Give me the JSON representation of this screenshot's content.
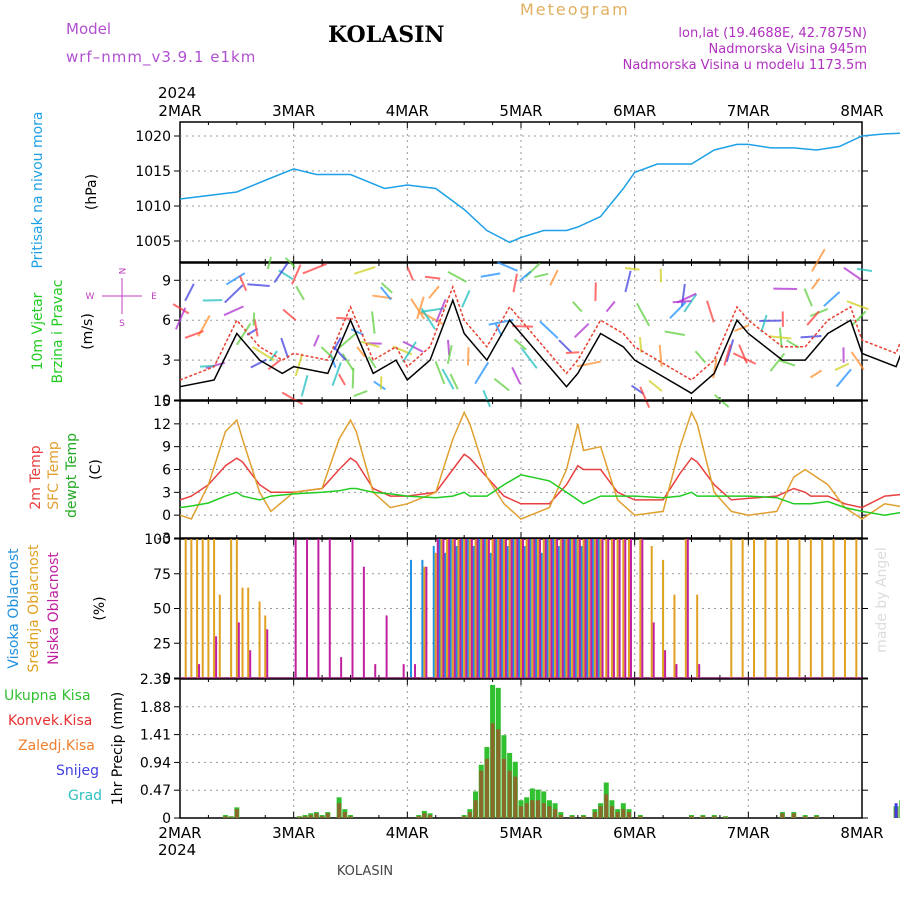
{
  "header": {
    "model_label": "Model",
    "model_name": "wrf–nmm_v3.9.1  e1km",
    "station": "KOLASIN",
    "product": "Meteogram",
    "lonlat": "lon,lat (19.4688E, 42.7875N)",
    "elevation": "Nadmorska Visina 945m",
    "model_elevation": "Nadmorska Visina u modelu 1173.5m",
    "year": "2024",
    "footer_station": "KOLASIN",
    "credit": "made by Angel"
  },
  "colors": {
    "pressure": "#1ea0e6",
    "wind_speed": "#000000",
    "wind_gust": "#e84030",
    "temp2m": "#e84040",
    "sfc_temp": "#e0a030",
    "dewpoint": "#22cc22",
    "cloud_high": "#1e90e0",
    "cloud_mid": "#e0a020",
    "cloud_low": "#c020a0",
    "precip_total": "#30c030",
    "precip_conv": "#e83030",
    "precip_frozen": "#f08030",
    "precip_snow": "#4040e0",
    "precip_grad": "#30c0c0"
  },
  "x_ticks": [
    "2MAR",
    "3MAR",
    "4MAR",
    "5MAR",
    "6MAR",
    "7MAR",
    "8MAR"
  ],
  "chart_data": [
    {
      "type": "line",
      "name": "pressure",
      "ylabel": "(hPa)",
      "side_labels": [
        "Pritisak na nivou mora"
      ],
      "ylim": [
        1002,
        1022
      ],
      "yticks": [
        1005,
        1010,
        1015,
        1020
      ],
      "x_days": [
        0,
        0.5,
        0.8,
        1,
        1.2,
        1.5,
        1.8,
        2,
        2.25,
        2.5,
        2.7,
        2.9,
        3,
        3.2,
        3.4,
        3.5,
        3.7,
        3.9,
        4,
        4.2,
        4.5,
        4.7,
        4.9,
        5,
        5.2,
        5.4,
        5.6,
        5.8,
        6,
        6.2,
        6.5,
        6.7,
        6.9,
        7
      ],
      "series": [
        {
          "values": [
            1011,
            1012,
            1014,
            1015.3,
            1014.5,
            1014.5,
            1012.5,
            1013,
            1012.5,
            1009.5,
            1006.5,
            1004.8,
            1005.5,
            1006.5,
            1006.5,
            1007,
            1008.5,
            1012.5,
            1014.8,
            1016,
            1016,
            1018,
            1018.8,
            1018.8,
            1018.3,
            1018.3,
            1018,
            1018.5,
            1020,
            1020.3,
            1020.5,
            1020.5,
            1020.3,
            1020.5
          ]
        }
      ]
    },
    {
      "type": "line",
      "name": "wind",
      "ylabel": "(m/s)",
      "side_labels": [
        "10m Vjetar",
        "Brzina i Pravac"
      ],
      "compass": [
        "N",
        "W",
        "E",
        "S"
      ],
      "ylim": [
        0,
        10.3
      ],
      "yticks": [
        0,
        3,
        6,
        9
      ],
      "x_days": [
        0,
        0.3,
        0.5,
        0.7,
        0.9,
        1,
        1.3,
        1.5,
        1.7,
        1.9,
        2,
        2.2,
        2.4,
        2.5,
        2.7,
        2.9,
        3,
        3.2,
        3.4,
        3.5,
        3.7,
        3.9,
        4,
        4.3,
        4.5,
        4.7,
        4.9,
        5,
        5.3,
        5.5,
        5.7,
        5.9,
        6,
        6.3,
        6.5,
        6.7,
        6.9,
        7
      ],
      "series": [
        {
          "name": "speed",
          "values": [
            1,
            1.5,
            5,
            3,
            2,
            2.5,
            2,
            6,
            2,
            3,
            1.5,
            3,
            7.5,
            5,
            3,
            6,
            5,
            3,
            1,
            2,
            5,
            4,
            3,
            1.5,
            0.5,
            2,
            6,
            5,
            3,
            3,
            5,
            6,
            3.5,
            2.5,
            7,
            3,
            3,
            2.5
          ]
        },
        {
          "name": "gust",
          "values": [
            1.5,
            2.5,
            6,
            4,
            3,
            3.5,
            3,
            7,
            3,
            4,
            2.5,
            4,
            8.5,
            6,
            4,
            7,
            6,
            4,
            2,
            3,
            6,
            5,
            4,
            2.5,
            1.5,
            3,
            7,
            6,
            4,
            4,
            6,
            7,
            4.5,
            3.5,
            8,
            4,
            4,
            3.5
          ]
        }
      ]
    },
    {
      "type": "line",
      "name": "temperature",
      "ylabel": "(C)",
      "side_labels": [
        "2m Temp",
        "SFC Temp",
        "dewpt Temp"
      ],
      "ylim": [
        -3,
        15
      ],
      "yticks": [
        -3,
        0,
        3,
        6,
        9,
        12,
        15
      ],
      "x_days": [
        0,
        0.1,
        0.25,
        0.4,
        0.5,
        0.55,
        0.7,
        0.8,
        1,
        1.25,
        1.4,
        1.5,
        1.55,
        1.7,
        1.85,
        2,
        2.25,
        2.4,
        2.5,
        2.55,
        2.7,
        2.85,
        3,
        3.25,
        3.4,
        3.5,
        3.55,
        3.7,
        3.85,
        4,
        4.25,
        4.4,
        4.5,
        4.55,
        4.7,
        4.85,
        5,
        5.25,
        5.4,
        5.5,
        5.55,
        5.7,
        5.85,
        6,
        6.2,
        6.4,
        6.6,
        6.8,
        7
      ],
      "series": [
        {
          "name": "2m",
          "values": [
            2,
            2.5,
            4,
            6.5,
            7.5,
            7,
            4,
            3,
            3,
            3.5,
            6,
            7.5,
            7,
            3.5,
            2.5,
            2.5,
            3,
            6,
            8,
            7.5,
            5,
            2.5,
            1.5,
            1.5,
            4,
            6.5,
            6,
            6,
            3,
            2,
            2,
            5.5,
            7.5,
            7,
            4,
            2,
            2.2,
            2.5,
            3.5,
            3,
            2.5,
            2.5,
            1.5,
            1,
            2.5,
            2.8,
            2,
            0,
            -1
          ]
        },
        {
          "name": "sfc",
          "values": [
            0,
            -0.5,
            4,
            11,
            12.5,
            10,
            3,
            0.5,
            3,
            3.5,
            10,
            12.5,
            11,
            3,
            1,
            1.5,
            3,
            10,
            13.5,
            12,
            5,
            1.5,
            -0.5,
            1,
            6,
            12,
            8.5,
            9,
            2,
            0,
            0.5,
            9,
            13.5,
            12,
            3,
            0.5,
            0,
            0.5,
            5,
            6,
            5.5,
            4,
            1,
            -0.5,
            1.5,
            1,
            0,
            -1.5,
            -1.5
          ]
        },
        {
          "name": "dewpt",
          "values": [
            1,
            1.2,
            1.6,
            2.5,
            3,
            2.5,
            2,
            2.5,
            2.8,
            3,
            3.2,
            3.5,
            3.5,
            3,
            2.8,
            2.5,
            2.3,
            2.5,
            3,
            2.5,
            2.5,
            4,
            5.3,
            4.5,
            3,
            2,
            1.5,
            2.5,
            2.5,
            2.5,
            2.3,
            2.5,
            3,
            2.5,
            2.5,
            2.5,
            2.5,
            2.3,
            1.5,
            1.5,
            1.5,
            1.8,
            1,
            0.5,
            0,
            0.5,
            0,
            0,
            -0.5
          ]
        }
      ]
    },
    {
      "type": "bar",
      "name": "cloud",
      "ylabel": "(%)",
      "side_labels": [
        "Visoka Oblacnost",
        "Srednja Oblacnost",
        "Niska Oblacnost"
      ],
      "ylim": [
        0,
        100
      ],
      "yticks": [
        0,
        25,
        50,
        75,
        100
      ],
      "x_days": [
        0.05,
        0.1,
        0.15,
        0.2,
        0.25,
        0.3,
        0.35,
        0.45,
        0.5,
        0.55,
        0.6,
        0.7,
        0.75,
        0.85,
        1.0,
        1.1,
        1.2,
        1.3,
        1.4,
        1.5,
        1.6,
        1.7,
        1.8,
        1.95,
        2.05,
        2.15,
        2.25,
        2.3,
        2.35,
        2.4,
        2.45,
        2.5,
        2.55,
        2.6,
        2.65,
        2.7,
        2.75,
        2.8,
        2.85,
        2.9,
        2.95,
        3.0,
        3.05,
        3.1,
        3.15,
        3.2,
        3.25,
        3.3,
        3.35,
        3.4,
        3.45,
        3.5,
        3.55,
        3.6,
        3.65,
        3.7,
        3.75,
        3.8,
        3.85,
        3.9,
        3.95,
        4.05,
        4.15,
        4.25,
        4.35,
        4.45,
        4.55,
        4.65,
        4.75,
        4.85,
        4.95,
        5.05,
        5.15,
        5.25,
        5.35,
        5.45,
        5.55,
        5.65,
        5.75,
        5.85,
        5.95
      ],
      "series": [
        {
          "name": "high",
          "values": [
            0,
            0,
            0,
            0,
            0,
            0,
            0,
            0,
            0,
            0,
            0,
            0,
            0,
            0,
            0,
            0,
            0,
            0,
            0,
            0,
            0,
            0,
            0,
            0,
            85,
            85,
            95,
            100,
            90,
            100,
            95,
            100,
            100,
            95,
            100,
            100,
            90,
            100,
            100,
            95,
            100,
            100,
            95,
            100,
            100,
            90,
            100,
            100,
            95,
            100,
            100,
            100,
            95,
            100,
            100,
            100,
            0,
            0,
            0,
            0,
            0,
            0,
            0,
            0,
            0,
            0,
            0,
            0,
            0,
            0,
            0,
            0,
            0,
            0,
            0,
            0,
            0,
            0,
            0,
            0,
            0
          ]
        },
        {
          "name": "mid",
          "values": [
            100,
            100,
            100,
            100,
            100,
            100,
            60,
            100,
            100,
            65,
            65,
            55,
            45,
            0,
            0,
            0,
            0,
            0,
            0,
            0,
            0,
            0,
            0,
            0,
            0,
            80,
            90,
            100,
            100,
            100,
            100,
            100,
            100,
            100,
            100,
            100,
            100,
            100,
            100,
            100,
            100,
            100,
            100,
            100,
            100,
            100,
            100,
            100,
            100,
            100,
            100,
            100,
            100,
            100,
            100,
            100,
            100,
            100,
            100,
            100,
            100,
            100,
            95,
            85,
            60,
            100,
            60,
            0,
            0,
            100,
            100,
            100,
            100,
            100,
            100,
            100,
            100,
            100,
            100,
            100,
            100
          ]
        },
        {
          "name": "low",
          "values": [
            0,
            0,
            10,
            0,
            0,
            30,
            0,
            0,
            40,
            0,
            20,
            0,
            35,
            0,
            100,
            100,
            100,
            100,
            15,
            100,
            80,
            10,
            45,
            10,
            10,
            80,
            100,
            100,
            100,
            100,
            100,
            100,
            100,
            100,
            100,
            100,
            100,
            100,
            100,
            100,
            100,
            100,
            100,
            100,
            100,
            100,
            100,
            100,
            100,
            100,
            100,
            100,
            100,
            100,
            100,
            100,
            100,
            100,
            100,
            100,
            100,
            100,
            40,
            20,
            10,
            100,
            10,
            0,
            0,
            0,
            0,
            0,
            0,
            0,
            0,
            0,
            0,
            0,
            0,
            0,
            0
          ]
        }
      ]
    },
    {
      "type": "bar",
      "name": "precip",
      "ylabel": "1hr Precip (mm)",
      "legend": [
        "Ukupna Kisa",
        "Konvek.Kisa",
        "Zaledj.Kisa",
        "Snijeg",
        "Grad"
      ],
      "ylim": [
        0,
        2.35
      ],
      "yticks": [
        0,
        0.47,
        0.94,
        1.41,
        1.88,
        2.35
      ],
      "x_days": [
        0.4,
        0.45,
        0.5,
        1.05,
        1.1,
        1.15,
        1.2,
        1.25,
        1.3,
        1.4,
        1.45,
        1.5,
        2.1,
        2.15,
        2.2,
        2.5,
        2.55,
        2.6,
        2.65,
        2.7,
        2.75,
        2.8,
        2.85,
        2.9,
        2.95,
        3.0,
        3.05,
        3.1,
        3.15,
        3.2,
        3.25,
        3.3,
        3.35,
        3.45,
        3.55,
        3.65,
        3.7,
        3.75,
        3.8,
        3.85,
        3.9,
        3.95,
        4.05,
        4.5,
        4.6,
        4.7,
        4.8,
        5.3,
        5.4,
        5.5,
        5.6,
        6.3,
        6.35,
        6.4,
        6.45,
        6.5,
        6.55,
        6.6,
        6.65,
        6.7,
        6.75,
        6.85,
        6.95
      ],
      "series": [
        {
          "name": "total",
          "values": [
            0.05,
            0.03,
            0.18,
            0.03,
            0.05,
            0.08,
            0.1,
            0.05,
            0.1,
            0.35,
            0.15,
            0.05,
            0.05,
            0.12,
            0.08,
            0.05,
            0.15,
            0.45,
            0.9,
            1.2,
            2.25,
            2.2,
            1.4,
            1.1,
            0.95,
            0.3,
            0.35,
            0.5,
            0.48,
            0.45,
            0.3,
            0.25,
            0.1,
            0.05,
            0.05,
            0.15,
            0.25,
            0.6,
            0.3,
            0.15,
            0.25,
            0.15,
            0.05,
            0.05,
            0.05,
            0.05,
            0.03,
            0.1,
            0.1,
            0.05,
            0.05,
            0.2,
            0.3,
            0.15,
            0.1,
            0.2,
            0.15,
            0.1,
            0.2,
            0.15,
            0.1,
            0.05,
            0.03
          ]
        },
        {
          "name": "conv",
          "values": [
            0.03,
            0.02,
            0.15,
            0.02,
            0.03,
            0.05,
            0.08,
            0.03,
            0.08,
            0.25,
            0.1,
            0.03,
            0.03,
            0.08,
            0.05,
            0.03,
            0.1,
            0.3,
            0.8,
            1.0,
            1.6,
            1.5,
            1.0,
            0.8,
            0.7,
            0.2,
            0.25,
            0.3,
            0.3,
            0.25,
            0.2,
            0.15,
            0.05,
            0.03,
            0.03,
            0.1,
            0.2,
            0.4,
            0.2,
            0.1,
            0.15,
            0.1,
            0.03,
            0.03,
            0.03,
            0.03,
            0.02,
            0.08,
            0.08,
            0.03,
            0.03,
            0.15,
            0.2,
            0.1,
            0.08,
            0.15,
            0.1,
            0.08,
            0.15,
            0.1,
            0.08,
            0.03,
            0.02
          ]
        },
        {
          "name": "snow",
          "values": [
            0,
            0,
            0,
            0,
            0,
            0,
            0,
            0,
            0,
            0,
            0,
            0,
            0,
            0,
            0,
            0,
            0,
            0,
            0,
            0,
            0,
            0,
            0,
            0,
            0,
            0,
            0,
            0,
            0,
            0,
            0,
            0,
            0,
            0,
            0,
            0,
            0,
            0,
            0,
            0,
            0,
            0,
            0,
            0,
            0,
            0,
            0,
            0,
            0,
            0,
            0,
            0.25,
            0.2,
            0,
            0,
            0,
            0,
            0,
            0,
            0,
            0,
            0,
            0
          ]
        }
      ]
    }
  ]
}
